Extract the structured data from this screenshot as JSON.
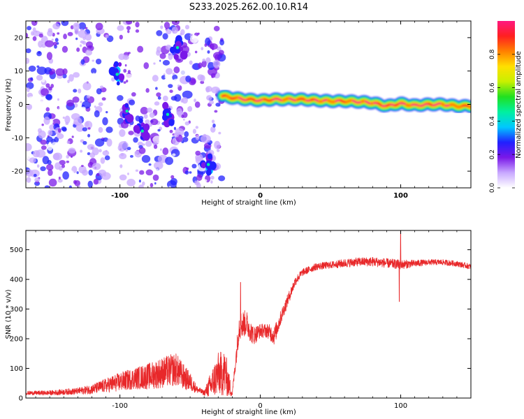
{
  "title": "S233.2025.262.00.10.R14",
  "chart_data": [
    {
      "type": "heatmap",
      "name": "spectrogram",
      "xlabel": "Height of straight line (km)",
      "ylabel": "Frequency (Hz)",
      "xlim": [
        -167,
        150
      ],
      "ylim": [
        -25,
        25
      ],
      "xticks": [
        -100,
        0,
        100
      ],
      "yticks": [
        -20,
        -10,
        0,
        10,
        20
      ],
      "grid": false,
      "colorbar": {
        "label": "Normalized spectral amplitude",
        "range": [
          0.0,
          1.0
        ],
        "ticks": [
          0.0,
          0.2,
          0.4,
          0.6,
          0.8
        ],
        "colors": [
          "#ffffff",
          "#c8a8ff",
          "#7a18e8",
          "#2020ff",
          "#00c8ff",
          "#00f0a0",
          "#20e020",
          "#c8f000",
          "#ffe000",
          "#ff8000",
          "#ff2020",
          "#ff1880"
        ]
      },
      "noise_region": {
        "x_range": [
          -167,
          -27
        ],
        "y_range": [
          -25,
          25
        ],
        "amplitude_range": [
          0.0,
          0.3
        ]
      },
      "clusters": [
        {
          "x": -102,
          "y": 9,
          "amplitude": 0.35
        },
        {
          "x": -95,
          "y": -2,
          "amplitude": 0.32
        },
        {
          "x": -84,
          "y": -8,
          "amplitude": 0.3
        },
        {
          "x": -66,
          "y": -3,
          "amplitude": 0.32
        },
        {
          "x": -59,
          "y": 17,
          "amplitude": 0.3
        },
        {
          "x": -37,
          "y": -18,
          "amplitude": 0.35
        }
      ],
      "signal": {
        "color_order": "edge-to-core",
        "x": [
          -27,
          -20,
          -10,
          0,
          10,
          20,
          30,
          40,
          50,
          60,
          70,
          80,
          90,
          100,
          110,
          120,
          130,
          140,
          150
        ],
        "frequency": [
          2.5,
          2,
          1.5,
          1.2,
          1.5,
          1.5,
          1.5,
          1.2,
          1,
          1,
          0.8,
          0.5,
          -0.5,
          0.3,
          -0.3,
          0,
          0,
          -0.5,
          -0.5
        ],
        "amplitude": [
          0.5,
          0.7,
          0.8,
          0.75,
          0.85,
          0.9,
          0.85,
          0.8,
          0.8,
          0.85,
          0.8,
          0.8,
          0.75,
          0.8,
          0.75,
          0.85,
          0.9,
          0.85,
          0.9
        ]
      }
    },
    {
      "type": "line",
      "name": "snr",
      "xlabel": "Height of straight line (km)",
      "ylabel": "SNR (10 * v/v)",
      "xlim": [
        -167,
        150
      ],
      "ylim": [
        0,
        565
      ],
      "xticks": [
        -100,
        0,
        100
      ],
      "yticks": [
        0,
        100,
        200,
        300,
        400,
        500
      ],
      "color": "#e8282a",
      "series": [
        {
          "name": "SNR",
          "x": [
            -167,
            -150,
            -130,
            -120,
            -110,
            -100,
            -90,
            -80,
            -70,
            -60,
            -55,
            -50,
            -45,
            -40,
            -35,
            -30,
            -25,
            -20,
            -15,
            -10,
            -5,
            0,
            5,
            10,
            15,
            20,
            25,
            30,
            40,
            50,
            60,
            70,
            80,
            90,
            100,
            110,
            120,
            130,
            140,
            150
          ],
          "y": [
            15,
            15,
            20,
            25,
            35,
            45,
            55,
            60,
            70,
            80,
            60,
            45,
            25,
            15,
            30,
            60,
            60,
            10,
            230,
            240,
            200,
            220,
            220,
            200,
            270,
            330,
            390,
            420,
            440,
            445,
            450,
            455,
            455,
            450,
            445,
            450,
            455,
            455,
            450,
            440
          ],
          "noise": [
            8,
            10,
            14,
            20,
            30,
            40,
            45,
            55,
            65,
            70,
            55,
            40,
            15,
            10,
            60,
            90,
            100,
            10,
            60,
            55,
            40,
            30,
            30,
            40,
            30,
            25,
            20,
            15,
            15,
            15,
            18,
            18,
            20,
            20,
            20,
            15,
            12,
            12,
            12,
            12
          ],
          "spikes": [
            {
              "x": 100,
              "y": 565
            },
            {
              "x": 99,
              "y": 325
            },
            {
              "x": -14,
              "y": 390
            }
          ]
        }
      ]
    }
  ]
}
